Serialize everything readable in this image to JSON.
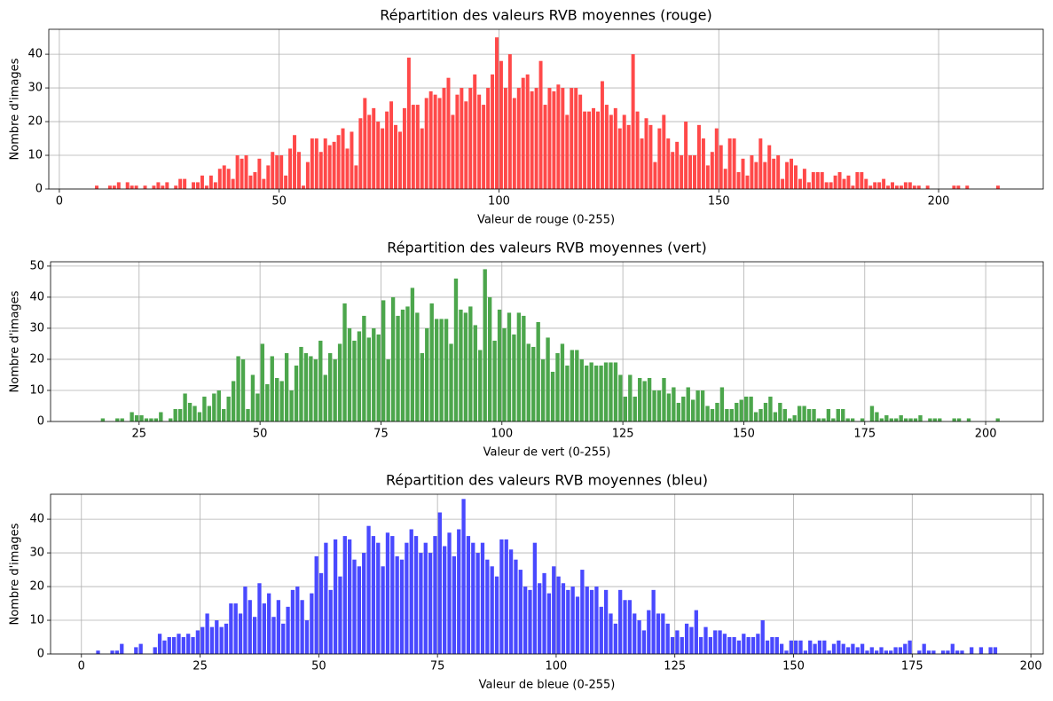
{
  "chart_data": [
    {
      "type": "histogram",
      "title": "Répartition des valeurs RVB moyennes (rouge)",
      "x_label": "Valeur de rouge (0-255)",
      "y_label": "Nombre d'images",
      "color": "#ff4949",
      "grid": true,
      "xlim": [
        -2.4,
        223.8
      ],
      "ylim": [
        0,
        47.4
      ],
      "xticks": [
        0,
        50,
        100,
        150,
        200
      ],
      "yticks": [
        0,
        10,
        20,
        30,
        40
      ],
      "bins": [
        8,
        9,
        10,
        11,
        12,
        13,
        14,
        15,
        16,
        17,
        18,
        19,
        20,
        21,
        22,
        23,
        24,
        25,
        26,
        27,
        28,
        29,
        30,
        31,
        32,
        33,
        34,
        35,
        36,
        37,
        38,
        39,
        40,
        41,
        42,
        43,
        44,
        45,
        46,
        47,
        48,
        49,
        50,
        51,
        52,
        53,
        54,
        55,
        56,
        57,
        58,
        59,
        60,
        61,
        62,
        63,
        64,
        65,
        66,
        67,
        68,
        69,
        70,
        71,
        72,
        73,
        74,
        75,
        76,
        77,
        78,
        79,
        80,
        81,
        82,
        83,
        84,
        85,
        86,
        87,
        88,
        89,
        90,
        91,
        92,
        93,
        94,
        95,
        96,
        97,
        98,
        99,
        100,
        101,
        102,
        103,
        104,
        105,
        106,
        107,
        108,
        109,
        110,
        111,
        112,
        113,
        114,
        115,
        116,
        117,
        118,
        119,
        120,
        121,
        122,
        123,
        124,
        125,
        126,
        127,
        128,
        129,
        130,
        131,
        132,
        133,
        134,
        135,
        136,
        137,
        138,
        139,
        140,
        141,
        142,
        143,
        144,
        145,
        146,
        147,
        148,
        149,
        150,
        151,
        152,
        153,
        154,
        155,
        156,
        157,
        158,
        159,
        160,
        161,
        162,
        163,
        164,
        165,
        166,
        167,
        168,
        169,
        170,
        171,
        172,
        173,
        174,
        175,
        176,
        177,
        178,
        179,
        180,
        181,
        182,
        183,
        184,
        185,
        186,
        187,
        188,
        189,
        190,
        191,
        192,
        193,
        194,
        195,
        196,
        197,
        198,
        199,
        200,
        201,
        202,
        203,
        204,
        205,
        206,
        207,
        208,
        209,
        210,
        211,
        212,
        213,
        214
      ],
      "values": [
        1,
        0,
        0,
        1,
        1,
        2,
        0,
        2,
        1,
        1,
        0,
        1,
        0,
        1,
        2,
        1,
        2,
        0,
        1,
        3,
        3,
        0,
        2,
        2,
        4,
        1,
        4,
        2,
        6,
        7,
        6,
        3,
        10,
        9,
        10,
        4,
        5,
        9,
        3,
        7,
        11,
        10,
        10,
        4,
        12,
        16,
        11,
        1,
        8,
        15,
        15,
        11,
        15,
        13,
        14,
        16,
        18,
        12,
        17,
        7,
        21,
        27,
        22,
        24,
        20,
        18,
        23,
        26,
        19,
        17,
        24,
        39,
        25,
        25,
        18,
        27,
        29,
        28,
        27,
        30,
        33,
        22,
        28,
        30,
        26,
        30,
        34,
        28,
        25,
        30,
        34,
        45,
        38,
        30,
        40,
        27,
        30,
        33,
        34,
        29,
        30,
        38,
        25,
        30,
        29,
        31,
        30,
        22,
        30,
        30,
        28,
        23,
        23,
        24,
        23,
        32,
        25,
        22,
        24,
        18,
        22,
        19,
        40,
        23,
        15,
        21,
        19,
        8,
        18,
        22,
        15,
        11,
        14,
        10,
        20,
        10,
        10,
        19,
        15,
        7,
        11,
        18,
        13,
        6,
        15,
        15,
        5,
        9,
        4,
        10,
        8,
        15,
        8,
        13,
        9,
        10,
        3,
        8,
        9,
        7,
        3,
        6,
        2,
        5,
        5,
        5,
        2,
        2,
        4,
        5,
        3,
        4,
        1,
        5,
        5,
        3,
        1,
        2,
        2,
        3,
        1,
        2,
        1,
        1,
        2,
        2,
        1,
        1,
        0,
        1,
        0,
        0,
        0,
        0,
        0,
        1,
        1,
        0,
        1,
        0,
        0,
        0,
        0,
        0,
        0,
        1
      ]
    },
    {
      "type": "histogram",
      "title": "Répartition des valeurs RVB moyennes (vert)",
      "x_label": "Valeur de vert (0-255)",
      "y_label": "Nombre d'images",
      "color": "#4ca64c",
      "grid": true,
      "xlim": [
        6.7,
        211.9
      ],
      "ylim": [
        0,
        51.4
      ],
      "xticks": [
        25,
        50,
        75,
        100,
        125,
        150,
        175,
        200
      ],
      "yticks": [
        0,
        10,
        20,
        30,
        40,
        50
      ],
      "bins": [
        17,
        18,
        19,
        20,
        21,
        22,
        23,
        24,
        25,
        26,
        27,
        28,
        29,
        30,
        31,
        32,
        33,
        34,
        35,
        36,
        37,
        38,
        39,
        40,
        41,
        42,
        43,
        44,
        45,
        46,
        47,
        48,
        49,
        50,
        51,
        52,
        53,
        54,
        55,
        56,
        57,
        58,
        59,
        60,
        61,
        62,
        63,
        64,
        65,
        66,
        67,
        68,
        69,
        70,
        71,
        72,
        73,
        74,
        75,
        76,
        77,
        78,
        79,
        80,
        81,
        82,
        83,
        84,
        85,
        86,
        87,
        88,
        89,
        90,
        91,
        92,
        93,
        94,
        95,
        96,
        97,
        98,
        99,
        100,
        101,
        102,
        103,
        104,
        105,
        106,
        107,
        108,
        109,
        110,
        111,
        112,
        113,
        114,
        115,
        116,
        117,
        118,
        119,
        120,
        121,
        122,
        123,
        124,
        125,
        126,
        127,
        128,
        129,
        130,
        131,
        132,
        133,
        134,
        135,
        136,
        137,
        138,
        139,
        140,
        141,
        142,
        143,
        144,
        145,
        146,
        147,
        148,
        149,
        150,
        151,
        152,
        153,
        154,
        155,
        156,
        157,
        158,
        159,
        160,
        161,
        162,
        163,
        164,
        165,
        166,
        167,
        168,
        169,
        170,
        171,
        172,
        173,
        174,
        175,
        176,
        177,
        178,
        179,
        180,
        181,
        182,
        183,
        184,
        185,
        186,
        187,
        188,
        189,
        190,
        191,
        192,
        193,
        194,
        195,
        196,
        197,
        198,
        199,
        200,
        201,
        202,
        203
      ],
      "values": [
        1,
        0,
        0,
        1,
        1,
        0,
        3,
        2,
        2,
        1,
        1,
        1,
        3,
        0,
        1,
        4,
        4,
        9,
        6,
        5,
        3,
        8,
        5,
        9,
        10,
        4,
        8,
        13,
        21,
        20,
        4,
        15,
        9,
        25,
        12,
        21,
        14,
        13,
        22,
        10,
        18,
        24,
        22,
        21,
        20,
        26,
        15,
        22,
        20,
        25,
        38,
        30,
        26,
        29,
        34,
        27,
        30,
        28,
        39,
        20,
        40,
        34,
        36,
        37,
        43,
        35,
        22,
        30,
        38,
        33,
        33,
        33,
        25,
        46,
        36,
        35,
        37,
        31,
        23,
        49,
        40,
        26,
        36,
        30,
        35,
        28,
        35,
        34,
        25,
        24,
        32,
        20,
        27,
        16,
        22,
        25,
        18,
        23,
        23,
        20,
        18,
        19,
        18,
        18,
        19,
        19,
        19,
        15,
        8,
        15,
        8,
        14,
        13,
        14,
        10,
        10,
        14,
        9,
        11,
        6,
        8,
        11,
        7,
        10,
        10,
        5,
        4,
        6,
        11,
        4,
        4,
        6,
        7,
        8,
        8,
        3,
        4,
        6,
        8,
        3,
        6,
        4,
        1,
        2,
        5,
        5,
        4,
        4,
        1,
        1,
        4,
        1,
        4,
        4,
        1,
        1,
        0,
        1,
        0,
        5,
        3,
        1,
        2,
        1,
        1,
        2,
        1,
        1,
        1,
        2,
        0,
        1,
        1,
        1,
        0,
        0,
        1,
        1,
        0,
        1,
        0,
        0,
        0,
        0,
        0,
        1
      ]
    },
    {
      "type": "histogram",
      "title": "Répartition des valeurs RVB moyennes (bleu)",
      "x_label": "Valeur de bleue (0-255)",
      "y_label": "Nombre d'images",
      "color": "#4949ff",
      "grid": true,
      "xlim": [
        -6.5,
        202.6
      ],
      "ylim": [
        0,
        47.4
      ],
      "xticks": [
        0,
        25,
        50,
        75,
        100,
        125,
        150,
        175,
        200
      ],
      "yticks": [
        0,
        10,
        20,
        30,
        40
      ],
      "bins": [
        3,
        4,
        5,
        6,
        7,
        8,
        9,
        10,
        11,
        12,
        13,
        14,
        15,
        16,
        17,
        18,
        19,
        20,
        21,
        22,
        23,
        24,
        25,
        26,
        27,
        28,
        29,
        30,
        31,
        32,
        33,
        34,
        35,
        36,
        37,
        38,
        39,
        40,
        41,
        42,
        43,
        44,
        45,
        46,
        47,
        48,
        49,
        50,
        51,
        52,
        53,
        54,
        55,
        56,
        57,
        58,
        59,
        60,
        61,
        62,
        63,
        64,
        65,
        66,
        67,
        68,
        69,
        70,
        71,
        72,
        73,
        74,
        75,
        76,
        77,
        78,
        79,
        80,
        81,
        82,
        83,
        84,
        85,
        86,
        87,
        88,
        89,
        90,
        91,
        92,
        93,
        94,
        95,
        96,
        97,
        98,
        99,
        100,
        101,
        102,
        103,
        104,
        105,
        106,
        107,
        108,
        109,
        110,
        111,
        112,
        113,
        114,
        115,
        116,
        117,
        118,
        119,
        120,
        121,
        122,
        123,
        124,
        125,
        126,
        127,
        128,
        129,
        130,
        131,
        132,
        133,
        134,
        135,
        136,
        137,
        138,
        139,
        140,
        141,
        142,
        143,
        144,
        145,
        146,
        147,
        148,
        149,
        150,
        151,
        152,
        153,
        154,
        155,
        156,
        157,
        158,
        159,
        160,
        161,
        162,
        163,
        164,
        165,
        166,
        167,
        168,
        169,
        170,
        171,
        172,
        173,
        174,
        175,
        176,
        177,
        178,
        179,
        180,
        181,
        182,
        183,
        184,
        185,
        186,
        187,
        188,
        189,
        190,
        191,
        192,
        193
      ],
      "values": [
        1,
        0,
        0,
        1,
        1,
        3,
        0,
        0,
        2,
        3,
        0,
        0,
        2,
        6,
        4,
        5,
        5,
        6,
        5,
        6,
        5,
        7,
        8,
        12,
        8,
        10,
        8,
        9,
        15,
        15,
        12,
        20,
        16,
        11,
        21,
        15,
        18,
        11,
        16,
        9,
        14,
        19,
        20,
        16,
        10,
        18,
        29,
        24,
        33,
        19,
        34,
        23,
        35,
        34,
        28,
        26,
        30,
        38,
        35,
        33,
        26,
        36,
        35,
        29,
        28,
        33,
        37,
        35,
        30,
        33,
        30,
        35,
        42,
        32,
        36,
        29,
        37,
        46,
        35,
        33,
        30,
        33,
        28,
        26,
        23,
        34,
        34,
        31,
        28,
        25,
        20,
        19,
        33,
        21,
        24,
        18,
        26,
        23,
        21,
        19,
        20,
        17,
        25,
        20,
        19,
        20,
        14,
        19,
        12,
        9,
        19,
        16,
        16,
        12,
        10,
        7,
        13,
        19,
        12,
        12,
        9,
        5,
        7,
        5,
        9,
        8,
        13,
        5,
        8,
        5,
        7,
        7,
        6,
        5,
        5,
        4,
        6,
        5,
        5,
        6,
        10,
        4,
        5,
        5,
        3,
        1,
        4,
        4,
        4,
        1,
        4,
        3,
        4,
        4,
        1,
        3,
        4,
        3,
        2,
        3,
        2,
        3,
        1,
        2,
        1,
        2,
        1,
        1,
        2,
        2,
        3,
        4,
        0,
        1,
        3,
        1,
        1,
        0,
        1,
        1,
        3,
        1,
        1,
        0,
        2,
        0,
        2,
        0,
        2,
        2
      ]
    }
  ]
}
